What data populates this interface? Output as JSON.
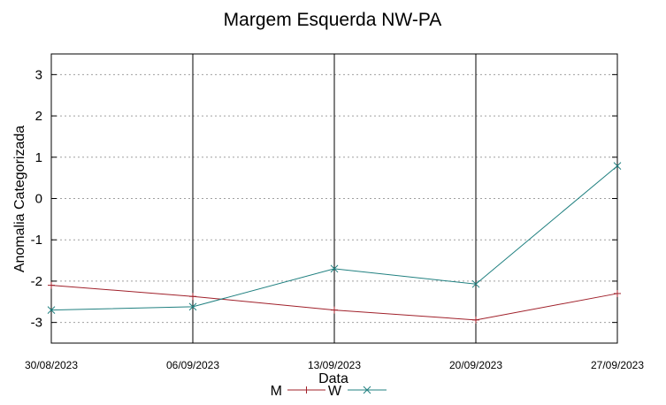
{
  "chart_data": {
    "type": "line",
    "title": "Margem Esquerda NW-PA",
    "xlabel": "Data",
    "ylabel": "Anomalia Categorizada",
    "categories": [
      "30/08/2023",
      "06/09/2023",
      "13/09/2023",
      "20/09/2023",
      "27/09/2023"
    ],
    "ylim": [
      -3.5,
      3.5
    ],
    "yticks": [
      -3,
      -2,
      -1,
      0,
      1,
      2,
      3
    ],
    "grid": true,
    "legend_position": "bottom-center",
    "series": [
      {
        "name": "M",
        "color": "#a0202a",
        "marker": "plus",
        "values": [
          -2.1,
          -2.37,
          -2.7,
          -2.94,
          -2.3
        ]
      },
      {
        "name": "W",
        "color": "#208080",
        "marker": "cross",
        "values": [
          -2.7,
          -2.62,
          -1.7,
          -2.07,
          0.79
        ]
      }
    ]
  }
}
